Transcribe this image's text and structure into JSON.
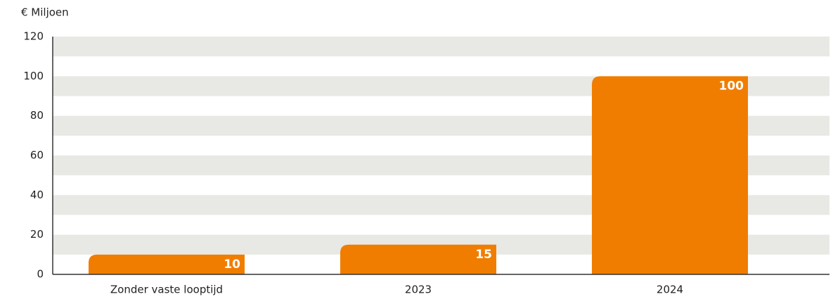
{
  "chart_data": {
    "type": "bar",
    "y_label": "€ Miljoen",
    "categories": [
      "Zonder vaste looptijd",
      "2023",
      "2024"
    ],
    "values": [
      10,
      15,
      100
    ],
    "color": "#f07d00",
    "ylim": [
      0,
      120
    ],
    "yticks": [
      0,
      20,
      40,
      60,
      80,
      100,
      120
    ],
    "grid": true
  }
}
